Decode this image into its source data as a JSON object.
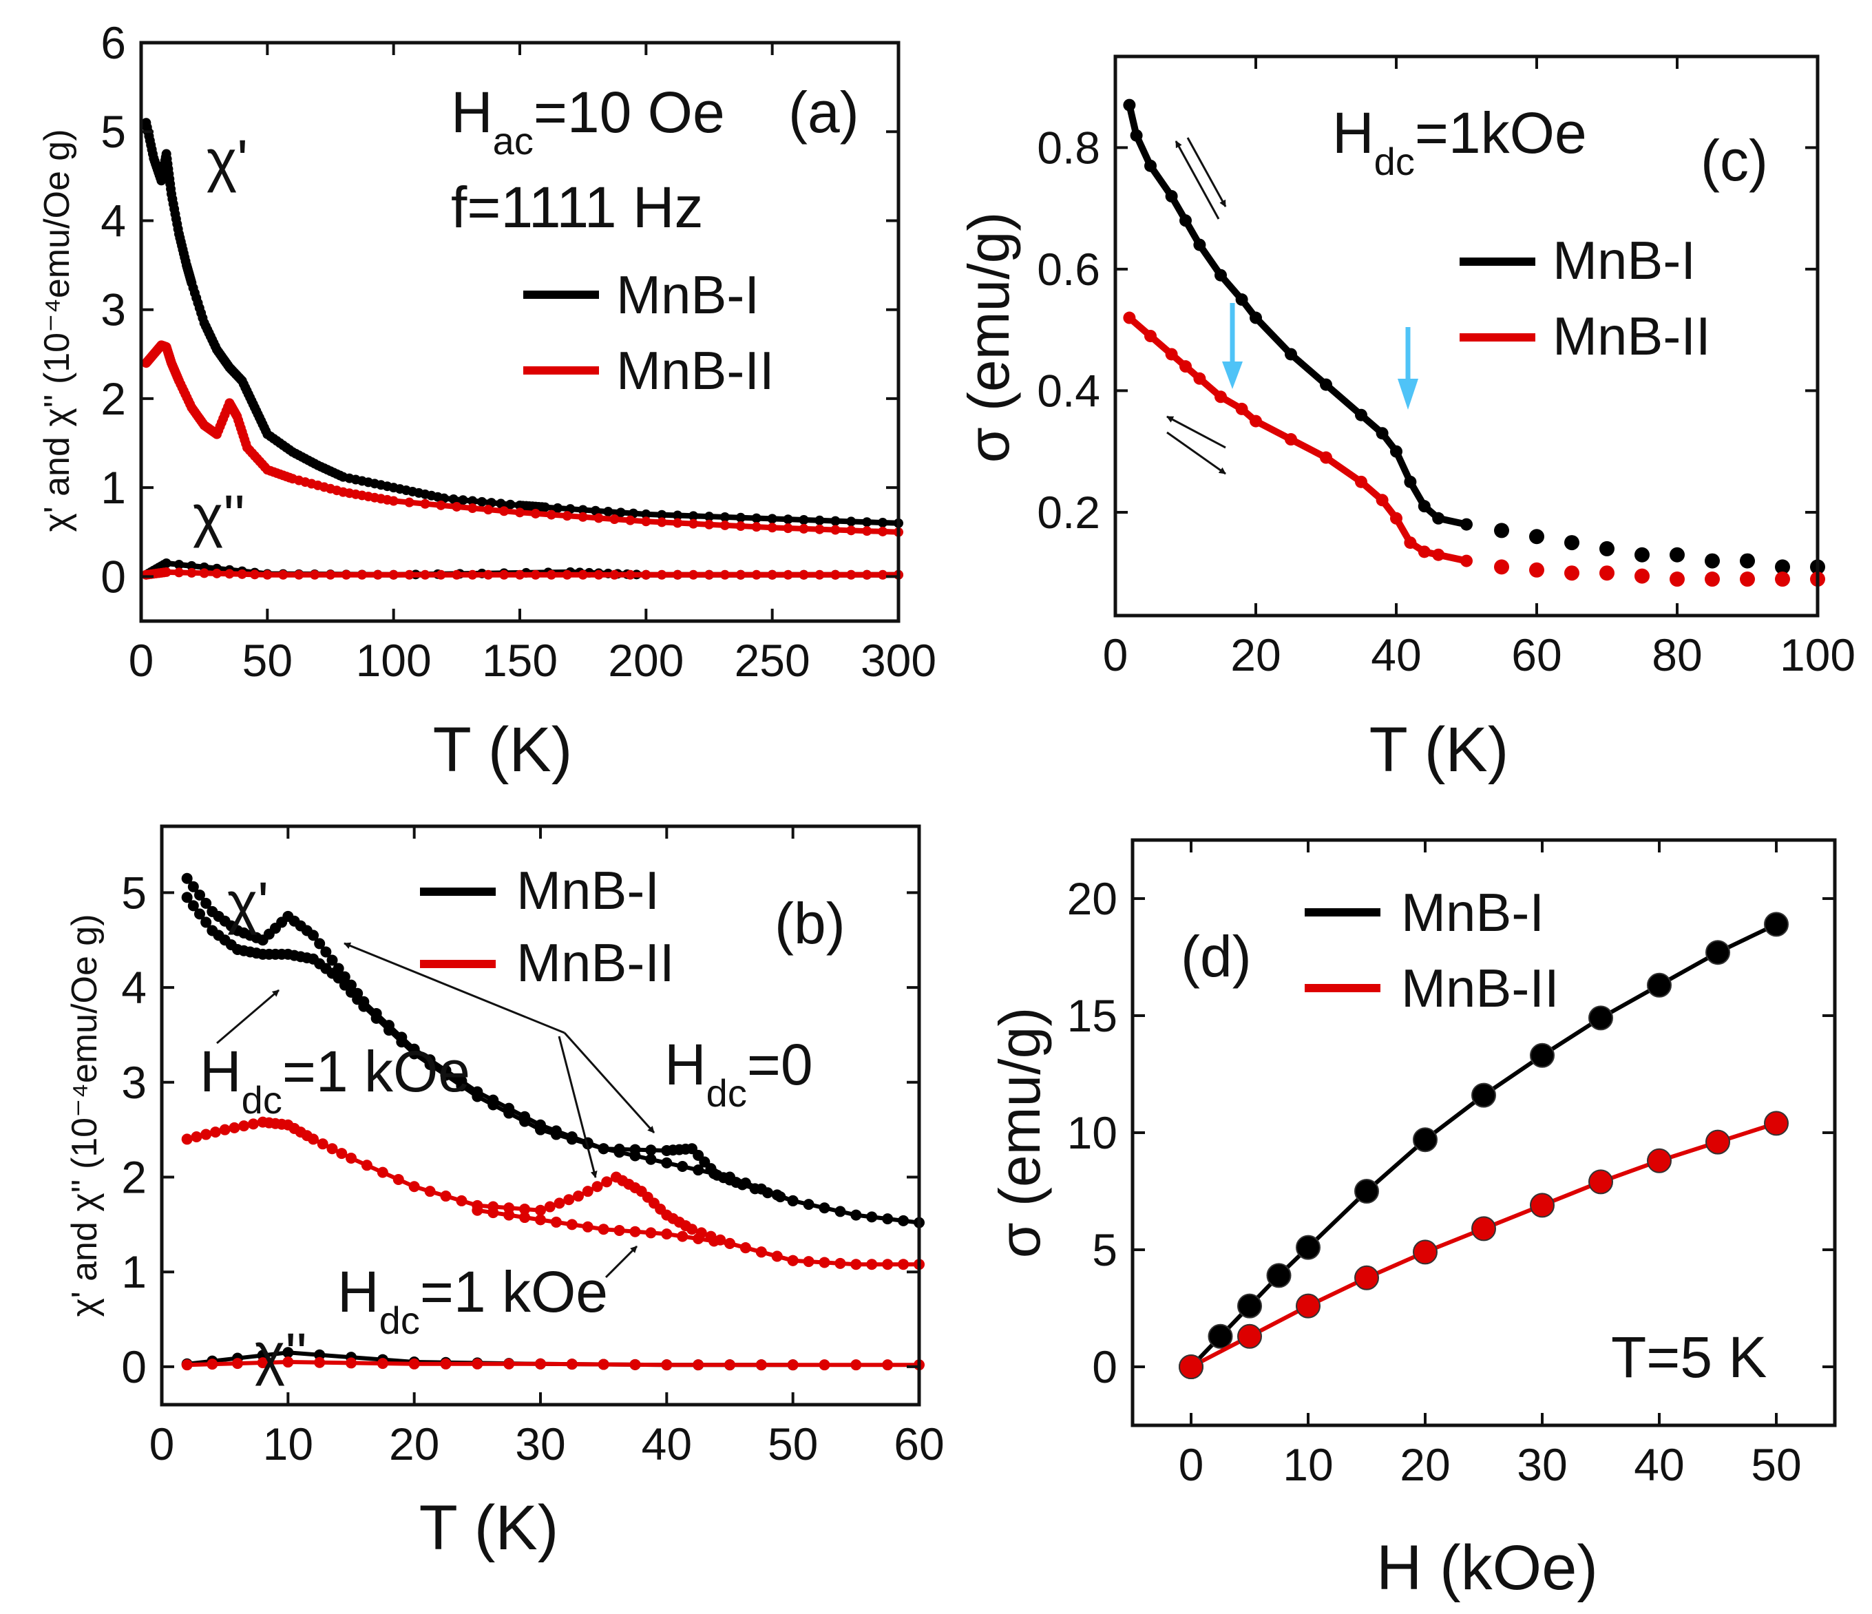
{
  "colors": {
    "series1": "#000000",
    "series2": "#dd0000",
    "arrow_blue": "#4fc3f7"
  },
  "legend": {
    "s1": "MnB-I",
    "s2": "MnB-II"
  },
  "chart_data": [
    {
      "panel": "(a)",
      "type": "scatter",
      "xlabel": "T (K)",
      "ylabel": "χ' and χ'' (10⁻⁴emu/Oe g)",
      "xlim": [
        0,
        300
      ],
      "ylim": [
        -0.5,
        6
      ],
      "xticks": [
        0,
        50,
        100,
        150,
        200,
        250,
        300
      ],
      "yticks": [
        0,
        1,
        2,
        3,
        4,
        5,
        6
      ],
      "annotations": [
        "H",
        "ac",
        "=10 Oe",
        "f=1111 Hz",
        "χ'",
        "χ''"
      ],
      "series": [
        {
          "name": "MnB-I χ'",
          "color": "#000000",
          "x": [
            2,
            5,
            8,
            10,
            12,
            15,
            18,
            20,
            25,
            30,
            35,
            40,
            45,
            50,
            60,
            70,
            80,
            100,
            120,
            150,
            160,
            200,
            250,
            300
          ],
          "values": [
            5.1,
            4.7,
            4.45,
            4.75,
            4.3,
            3.85,
            3.5,
            3.3,
            2.85,
            2.55,
            2.35,
            2.2,
            1.9,
            1.6,
            1.4,
            1.25,
            1.12,
            1.0,
            0.88,
            0.8,
            0.78,
            0.7,
            0.65,
            0.6
          ]
        },
        {
          "name": "MnB-II χ'",
          "color": "#dd0000",
          "x": [
            2,
            5,
            8,
            10,
            12,
            15,
            20,
            25,
            30,
            35,
            38,
            42,
            50,
            60,
            80,
            100,
            150,
            200,
            250,
            300
          ],
          "values": [
            2.4,
            2.5,
            2.6,
            2.58,
            2.4,
            2.2,
            1.9,
            1.7,
            1.6,
            1.95,
            1.8,
            1.45,
            1.2,
            1.1,
            0.95,
            0.85,
            0.72,
            0.62,
            0.55,
            0.5
          ]
        },
        {
          "name": "MnB-I χ''",
          "color": "#000000",
          "x": [
            2,
            10,
            50,
            100,
            170,
            200,
            300
          ],
          "values": [
            0.02,
            0.15,
            0.03,
            0.02,
            0.05,
            0.02,
            0.02
          ]
        },
        {
          "name": "MnB-II χ''",
          "color": "#dd0000",
          "x": [
            2,
            10,
            50,
            100,
            150,
            200,
            250,
            300
          ],
          "values": [
            0.02,
            0.05,
            0.02,
            0.02,
            0.02,
            0.02,
            0.02,
            0.02
          ]
        }
      ]
    },
    {
      "panel": "(b)",
      "type": "line",
      "xlabel": "T (K)",
      "ylabel": "χ' and χ'' (10⁻⁴emu/Oe g)",
      "xlim": [
        0,
        60
      ],
      "ylim": [
        -0.4,
        5.7
      ],
      "xticks": [
        0,
        10,
        20,
        30,
        40,
        50,
        60
      ],
      "yticks": [
        0,
        1,
        2,
        3,
        4,
        5
      ],
      "annotations": [
        "χ'",
        "χ''",
        "H",
        "dc",
        "=1 kOe",
        "=0"
      ],
      "series": [
        {
          "name": "MnB-I χ' Hdc=0",
          "color": "#000000",
          "x": [
            2,
            4,
            6,
            8,
            10,
            12,
            14,
            16,
            20,
            25,
            30,
            35,
            40,
            42,
            44,
            46,
            50,
            55,
            60
          ],
          "values": [
            5.15,
            4.8,
            4.6,
            4.5,
            4.75,
            4.55,
            4.2,
            3.85,
            3.35,
            2.9,
            2.55,
            2.3,
            2.28,
            2.3,
            2.02,
            1.92,
            1.75,
            1.6,
            1.52
          ]
        },
        {
          "name": "MnB-I χ' Hdc=1 kOe",
          "color": "#000000",
          "x": [
            2,
            4,
            6,
            8,
            10,
            12,
            14,
            16,
            20,
            25,
            30,
            35,
            40,
            45,
            50
          ],
          "values": [
            4.95,
            4.6,
            4.4,
            4.35,
            4.35,
            4.3,
            4.1,
            3.8,
            3.3,
            2.85,
            2.5,
            2.3,
            2.15,
            2.0,
            1.75
          ]
        },
        {
          "name": "MnB-II χ' Hdc=0",
          "color": "#dd0000",
          "x": [
            2,
            5,
            8,
            10,
            12,
            15,
            20,
            25,
            30,
            33,
            36,
            38,
            40,
            42,
            45,
            50,
            55,
            60
          ],
          "values": [
            2.4,
            2.5,
            2.58,
            2.55,
            2.4,
            2.2,
            1.9,
            1.7,
            1.65,
            1.8,
            2.0,
            1.85,
            1.6,
            1.45,
            1.3,
            1.12,
            1.08,
            1.08
          ]
        },
        {
          "name": "MnB-II χ' Hdc=1 kOe",
          "color": "#dd0000",
          "x": [
            25,
            30,
            35,
            40,
            45,
            50
          ],
          "values": [
            1.65,
            1.55,
            1.45,
            1.4,
            1.3,
            1.12
          ]
        },
        {
          "name": "MnB-I χ''",
          "color": "#000000",
          "x": [
            2,
            10,
            20,
            30,
            40,
            50
          ],
          "values": [
            0.03,
            0.15,
            0.05,
            0.03,
            0.02,
            0.02
          ]
        },
        {
          "name": "MnB-II χ''",
          "color": "#dd0000",
          "x": [
            2,
            10,
            20,
            30,
            40,
            50,
            60
          ],
          "values": [
            0.02,
            0.05,
            0.03,
            0.03,
            0.02,
            0.02,
            0.02
          ]
        }
      ]
    },
    {
      "panel": "(c)",
      "type": "scatter",
      "xlabel": "T (K)",
      "ylabel": "σ (emu/g)",
      "xlim": [
        0,
        100
      ],
      "ylim": [
        0.03,
        0.95
      ],
      "xticks": [
        0,
        20,
        40,
        60,
        80,
        100
      ],
      "yticks": [
        0.2,
        0.4,
        0.6,
        0.8
      ],
      "ytick_labels": [
        "0.2",
        "0.4",
        "0.6",
        "0.8"
      ],
      "annotations": [
        "H",
        "dc",
        "=1kOe"
      ],
      "series": [
        {
          "name": "MnB-I",
          "color": "#000000",
          "x": [
            2,
            3,
            5,
            8,
            10,
            12,
            15,
            18,
            20,
            25,
            30,
            35,
            38,
            40,
            42,
            44,
            46,
            50,
            55,
            60,
            65,
            70,
            75,
            80,
            85,
            90,
            95,
            100
          ],
          "values": [
            0.87,
            0.82,
            0.77,
            0.72,
            0.68,
            0.64,
            0.59,
            0.55,
            0.52,
            0.46,
            0.41,
            0.36,
            0.33,
            0.3,
            0.25,
            0.21,
            0.19,
            0.18,
            0.17,
            0.16,
            0.15,
            0.14,
            0.13,
            0.13,
            0.12,
            0.12,
            0.11,
            0.11
          ]
        },
        {
          "name": "MnB-II",
          "color": "#dd0000",
          "x": [
            2,
            5,
            8,
            10,
            12,
            15,
            18,
            20,
            25,
            30,
            35,
            38,
            40,
            42,
            44,
            46,
            50,
            55,
            60,
            65,
            70,
            75,
            80,
            85,
            90,
            95,
            100
          ],
          "values": [
            0.52,
            0.49,
            0.46,
            0.44,
            0.42,
            0.39,
            0.37,
            0.35,
            0.32,
            0.29,
            0.25,
            0.22,
            0.19,
            0.15,
            0.135,
            0.13,
            0.12,
            0.11,
            0.105,
            0.1,
            0.1,
            0.095,
            0.09,
            0.09,
            0.09,
            0.09,
            0.09
          ]
        }
      ]
    },
    {
      "panel": "(d)",
      "type": "line",
      "xlabel": "H (kOe)",
      "ylabel": "σ (emu/g)",
      "xlim": [
        -5,
        55
      ],
      "ylim": [
        -2.5,
        22.5
      ],
      "xticks": [
        0,
        10,
        20,
        30,
        40,
        50
      ],
      "yticks": [
        0,
        5,
        10,
        15,
        20
      ],
      "annotations": [
        "T=5 K"
      ],
      "series": [
        {
          "name": "MnB-I",
          "color": "#000000",
          "x": [
            0,
            2.5,
            5,
            7.5,
            10,
            15,
            20,
            25,
            30,
            35,
            40,
            45,
            50
          ],
          "values": [
            0,
            1.3,
            2.6,
            3.9,
            5.1,
            7.5,
            9.7,
            11.6,
            13.3,
            14.9,
            16.3,
            17.7,
            18.9
          ]
        },
        {
          "name": "MnB-II",
          "color": "#dd0000",
          "x": [
            0,
            5,
            10,
            15,
            20,
            25,
            30,
            35,
            40,
            45,
            50
          ],
          "values": [
            0,
            1.3,
            2.6,
            3.8,
            4.9,
            5.9,
            6.9,
            7.9,
            8.8,
            9.6,
            10.4
          ]
        }
      ]
    }
  ]
}
